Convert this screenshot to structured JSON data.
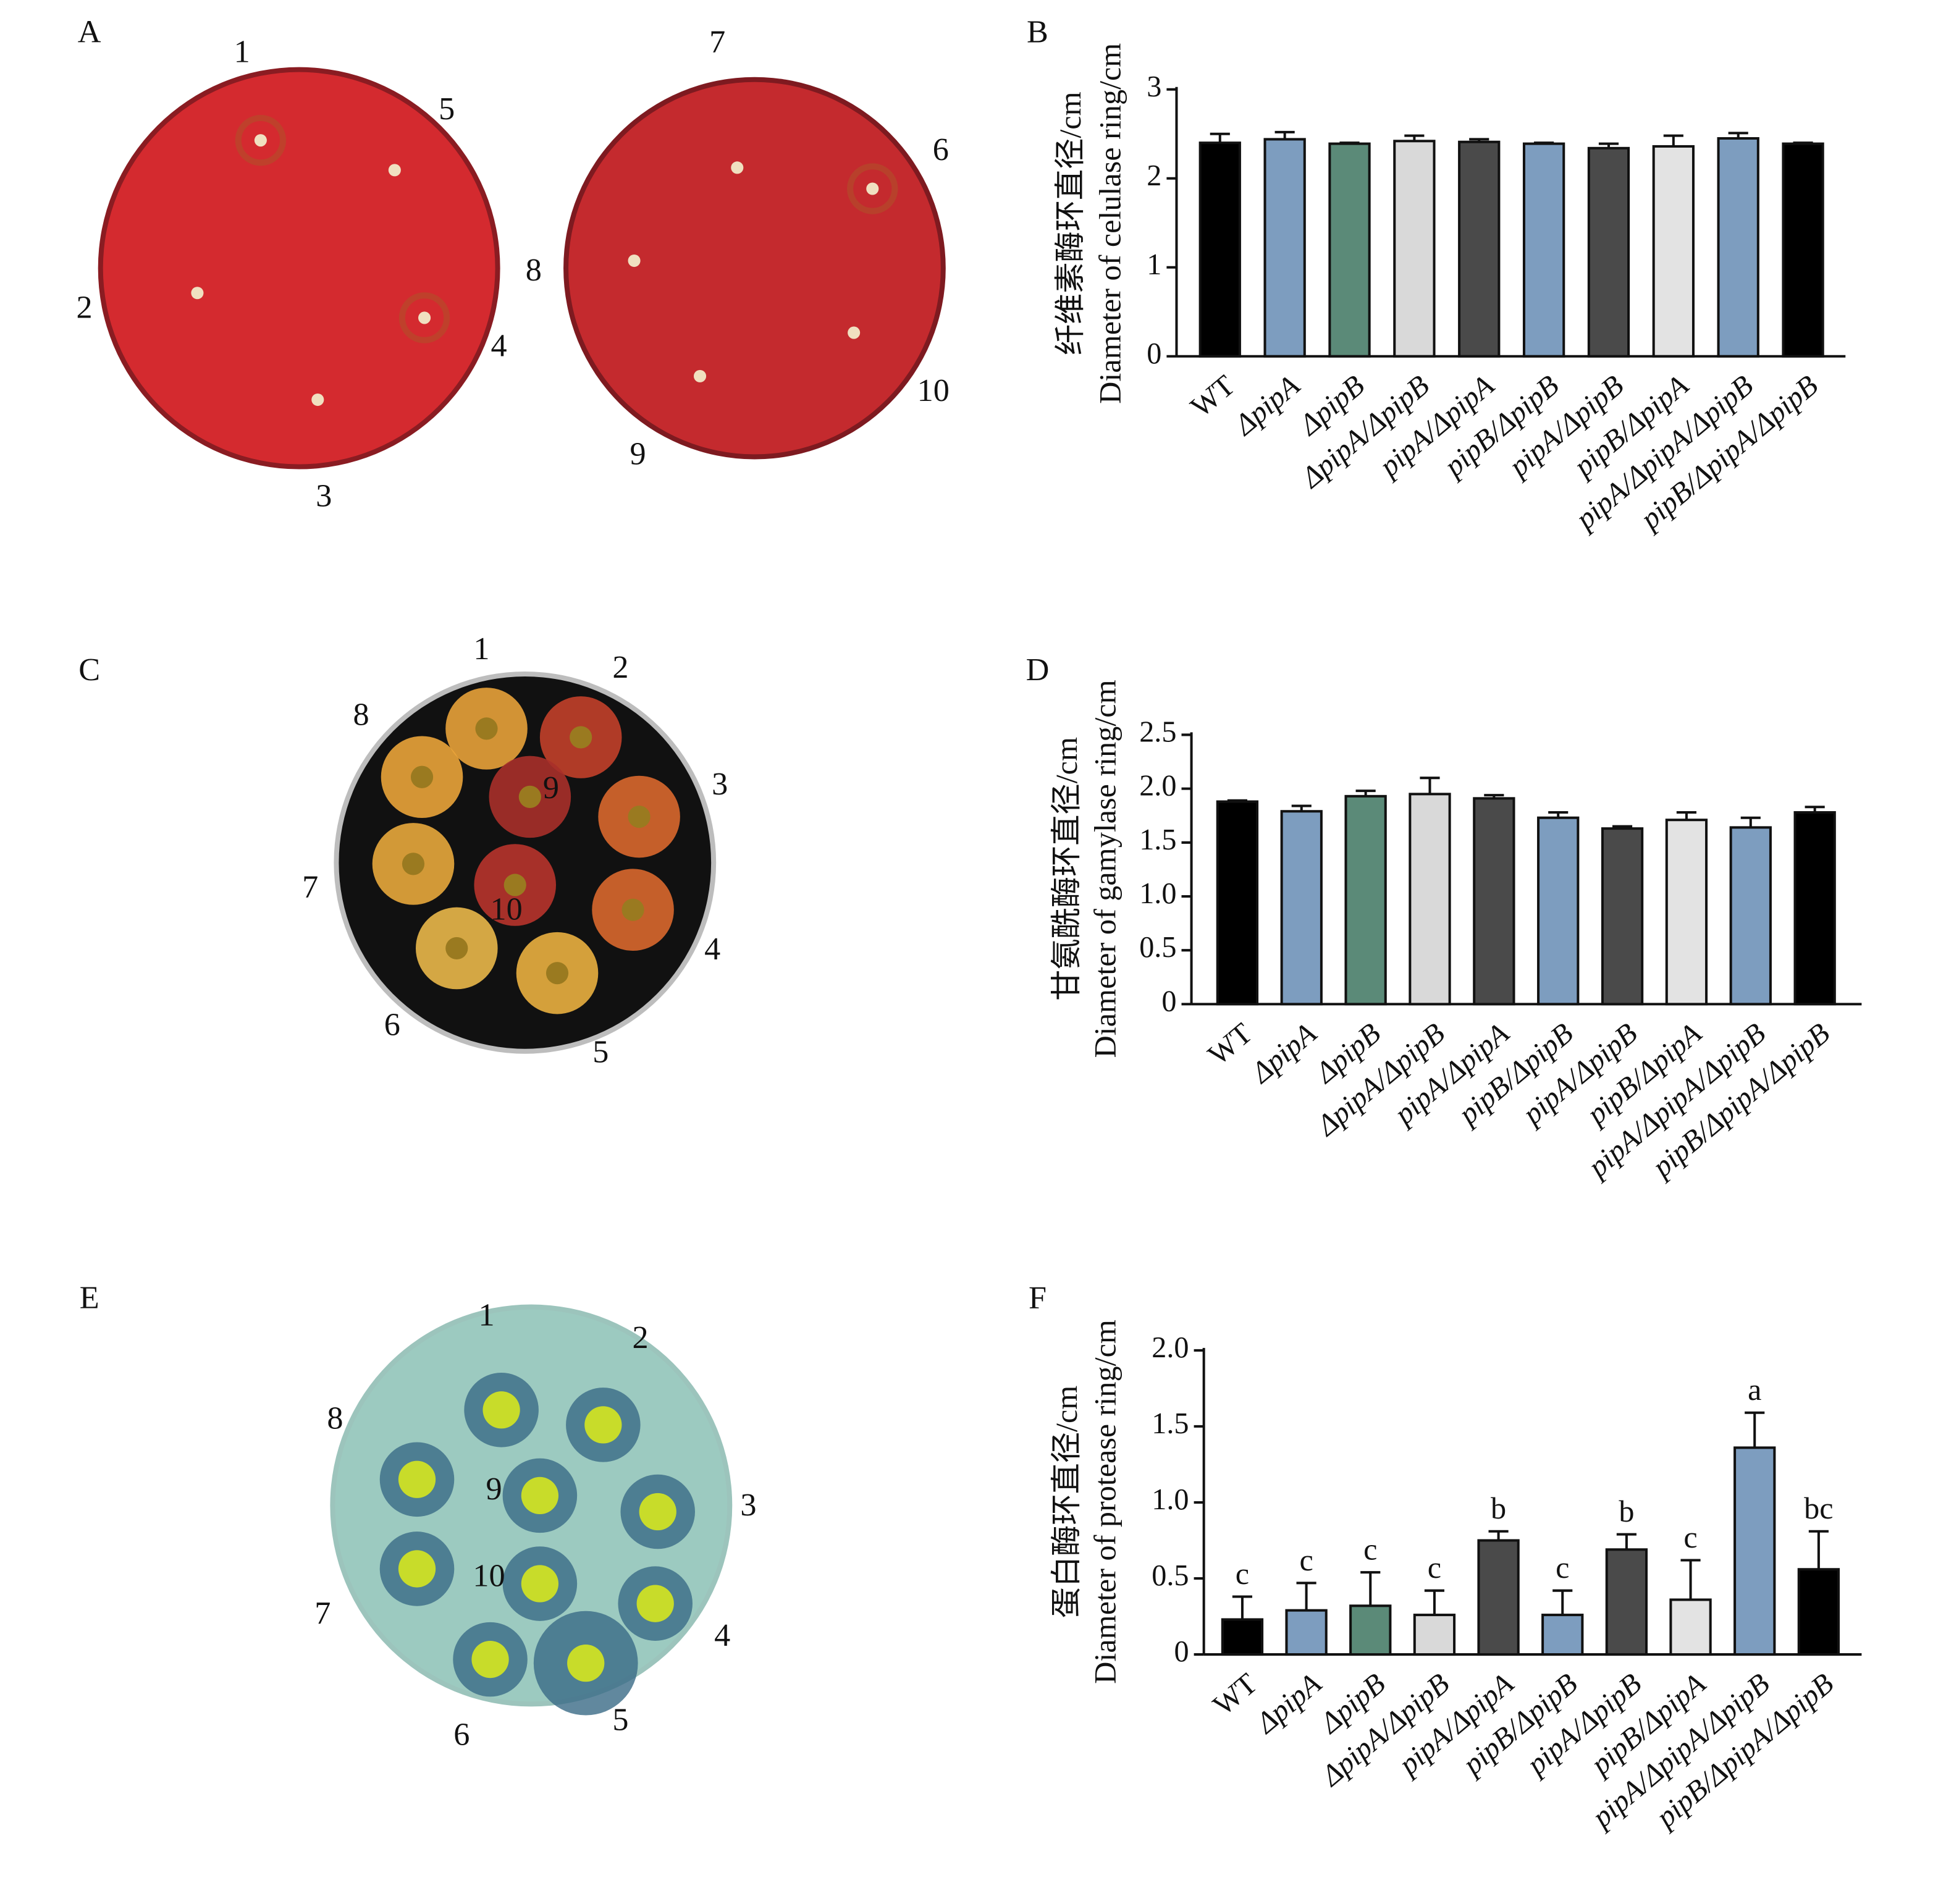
{
  "panel_labels": [
    "A",
    "B",
    "C",
    "D",
    "E",
    "F"
  ],
  "plates": [
    {
      "labels": [
        "1",
        "5",
        "2",
        "4",
        "3",
        "7",
        "6",
        "8",
        "10",
        "9"
      ]
    },
    {
      "labels": [
        "1",
        "2",
        "3",
        "4",
        "5",
        "6",
        "7",
        "8",
        "9",
        "10"
      ]
    },
    {
      "labels": [
        "1",
        "2",
        "3",
        "4",
        "5",
        "6",
        "7",
        "8",
        "9",
        "10"
      ]
    }
  ],
  "chart_data": [
    {
      "type": "bar",
      "ylabel": [
        "纤维素酶环直径/cm",
        "Diameter of celulase ring/cm"
      ],
      "categories": [
        "WT",
        "ΔpipA",
        "ΔpipB",
        "ΔpipA/ΔpipB",
        "pipA/ΔpipA",
        "pipB/ΔpipB",
        "pipA/ΔpipB",
        "pipB/ΔpipA",
        "pipA/ΔpipA/ΔpipB",
        "pipB/ΔpipA/ΔpipB"
      ],
      "values": [
        2.4,
        2.44,
        2.39,
        2.42,
        2.41,
        2.39,
        2.34,
        2.36,
        2.45,
        2.39
      ],
      "errors": [
        0.1,
        0.08,
        0.01,
        0.06,
        0.03,
        0.01,
        0.05,
        0.12,
        0.06,
        0.01
      ],
      "colors": [
        "#000000",
        "#7d9dbf",
        "#5b8a78",
        "#d9d9d9",
        "#4a4a4a",
        "#7d9dbf",
        "#4a4a4a",
        "#e3e3e3",
        "#7d9dbf",
        "#000000"
      ],
      "ylim": [
        0,
        3
      ],
      "yticks": [
        0,
        1,
        2,
        3
      ]
    },
    {
      "type": "bar",
      "ylabel": [
        "甘氨酰酶环直径/cm",
        "Diameter of gamylase ring/cm"
      ],
      "categories": [
        "WT",
        "ΔpipA",
        "ΔpipB",
        "ΔpipA/ΔpipB",
        "pipA/ΔpipA",
        "pipB/ΔpipB",
        "pipA/ΔpipB",
        "pipB/ΔpipA",
        "pipA/ΔpipA/ΔpipB",
        "pipB/ΔpipA/ΔpipB"
      ],
      "values": [
        1.88,
        1.79,
        1.93,
        1.95,
        1.91,
        1.73,
        1.63,
        1.71,
        1.64,
        1.78
      ],
      "errors": [
        0.01,
        0.05,
        0.05,
        0.15,
        0.03,
        0.05,
        0.02,
        0.07,
        0.09,
        0.05
      ],
      "colors": [
        "#000000",
        "#7d9dbf",
        "#5b8a78",
        "#d9d9d9",
        "#4a4a4a",
        "#7d9dbf",
        "#4a4a4a",
        "#e3e3e3",
        "#7d9dbf",
        "#000000"
      ],
      "ylim": [
        0,
        2.5
      ],
      "yticks": [
        0,
        0.5,
        {
          "value": 1,
          "label": "1.0"
        },
        1.5,
        {
          "value": 2,
          "label": "2.0"
        },
        2.5
      ]
    },
    {
      "type": "bar",
      "ylabel": [
        "蛋白酶环直径/cm",
        "Diameter of protease ring/cm"
      ],
      "categories": [
        "WT",
        "ΔpipA",
        "ΔpipB",
        "ΔpipA/ΔpipB",
        "pipA/ΔpipA",
        "pipB/ΔpipB",
        "pipA/ΔpipB",
        "pipB/ΔpipA",
        "pipA/ΔpipA/ΔpipB",
        "pipB/ΔpipA/ΔpipB"
      ],
      "values": [
        0.23,
        0.29,
        0.32,
        0.26,
        0.75,
        0.26,
        0.69,
        0.36,
        1.36,
        0.56
      ],
      "errors": [
        0.15,
        0.18,
        0.22,
        0.16,
        0.06,
        0.16,
        0.1,
        0.26,
        0.23,
        0.25
      ],
      "annotations": [
        "c",
        "c",
        "c",
        "c",
        "b",
        "c",
        "b",
        "c",
        "a",
        "bc"
      ],
      "colors": [
        "#000000",
        "#7d9dbf",
        "#5b8a78",
        "#d9d9d9",
        "#4a4a4a",
        "#7d9dbf",
        "#4a4a4a",
        "#e3e3e3",
        "#7d9dbf",
        "#000000"
      ],
      "ylim": [
        0,
        2
      ],
      "yticks": [
        0,
        0.5,
        {
          "value": 1,
          "label": "1.0"
        },
        1.5,
        {
          "value": 2,
          "label": "2.0"
        }
      ]
    }
  ]
}
